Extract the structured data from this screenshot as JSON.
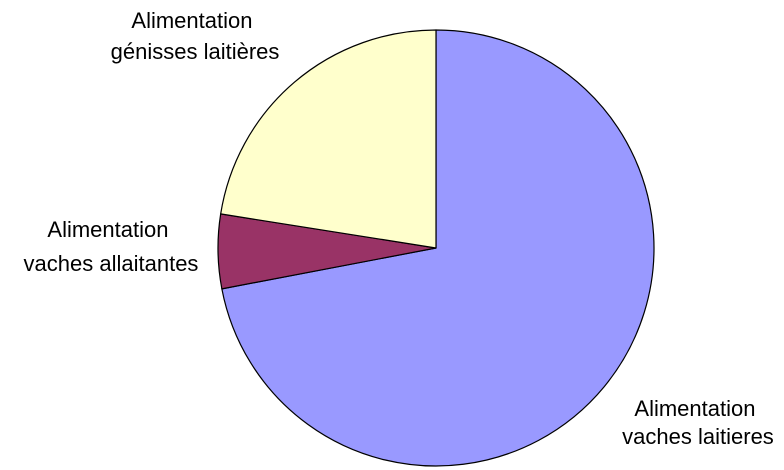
{
  "chart_data": {
    "type": "pie",
    "title": "",
    "start": "12 o'clock",
    "direction": "clockwise",
    "slices": [
      {
        "label": "Alimentation vaches laitieres",
        "lines": [
          "Alimentation",
          "vaches laitieres"
        ],
        "value": 72,
        "color": "#9999ff"
      },
      {
        "label": "Alimentation vaches allaitantes",
        "lines": [
          "Alimentation",
          "vaches allaitantes"
        ],
        "value": 5.5,
        "color": "#993366"
      },
      {
        "label": "Alimentation génisses laitières",
        "lines": [
          "Alimentation",
          "génisses laitières"
        ],
        "value": 22.5,
        "color": "#ffffcc"
      }
    ]
  }
}
